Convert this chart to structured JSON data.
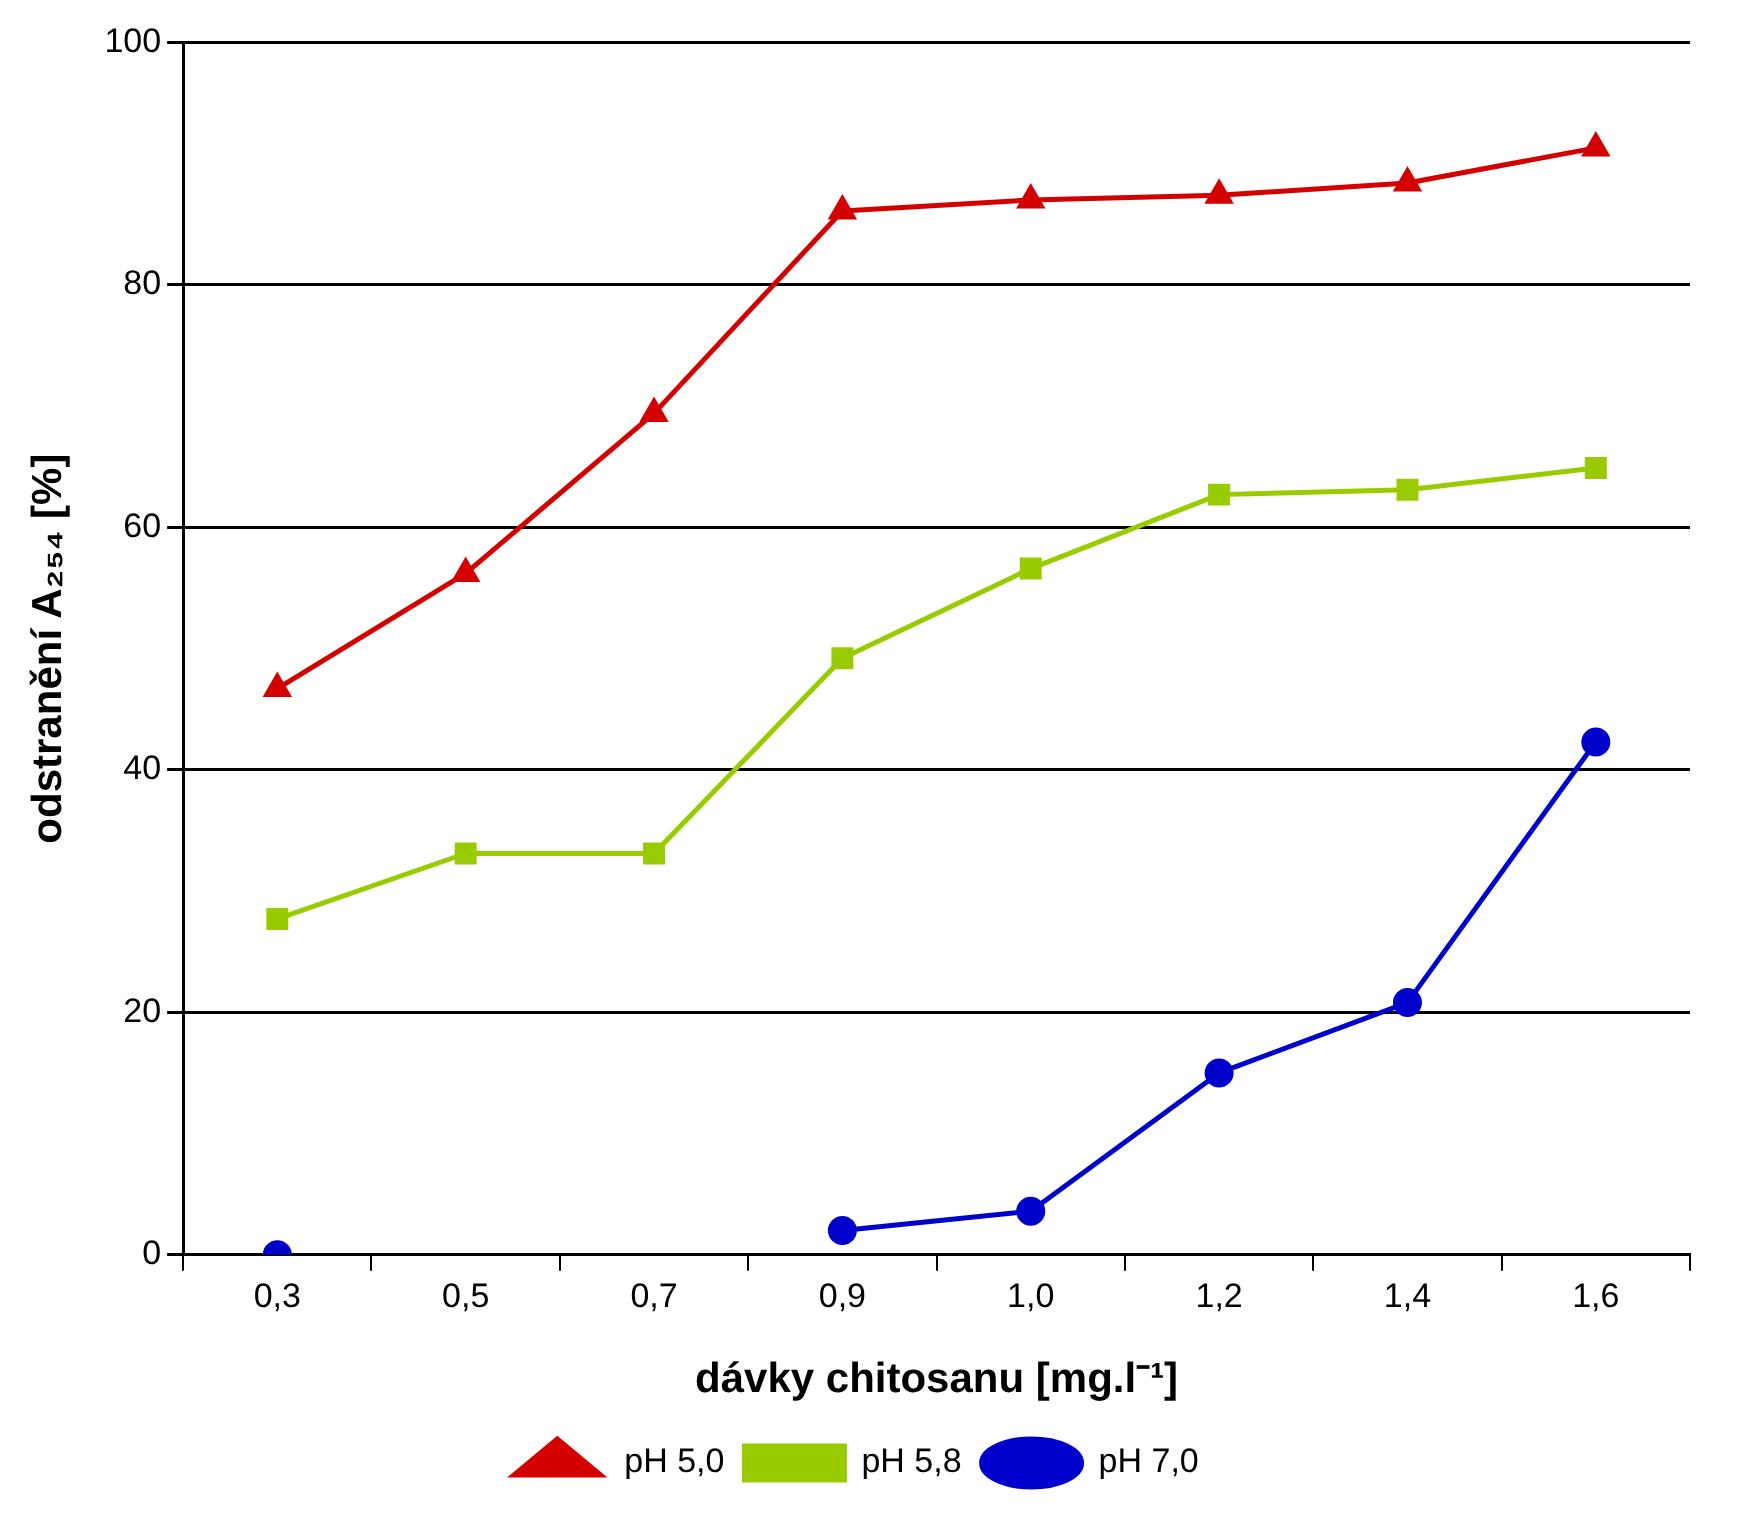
{
  "chart_data": {
    "type": "line",
    "xlabel": "dávky chitosanu [mg.l⁻¹]",
    "ylabel": "odstranění A₂₅₄ [%]",
    "categories": [
      "0,3",
      "0,5",
      "0,7",
      "0,9",
      "1,0",
      "1,2",
      "1,4",
      "1,6"
    ],
    "series": [
      {
        "name": "pH 5,0",
        "color": "#d40000",
        "marker": "triangle",
        "values": [
          46.7,
          56.2,
          69.4,
          86.1,
          87.0,
          87.4,
          88.4,
          91.3
        ]
      },
      {
        "name": "pH 5,8",
        "color": "#99cc00",
        "marker": "square",
        "values": [
          27.7,
          33.1,
          33.1,
          49.2,
          56.6,
          62.7,
          63.1,
          64.9
        ]
      },
      {
        "name": "pH 7,0",
        "color": "#0000cc",
        "marker": "circle",
        "values": [
          0,
          null,
          null,
          2.0,
          3.6,
          15.0,
          20.8,
          42.3
        ]
      }
    ],
    "ylim": [
      0,
      100
    ],
    "yticks": [
      0,
      20,
      40,
      60,
      80,
      100
    ],
    "grid": "y",
    "legend": "bottom",
    "line_style": "solid"
  }
}
